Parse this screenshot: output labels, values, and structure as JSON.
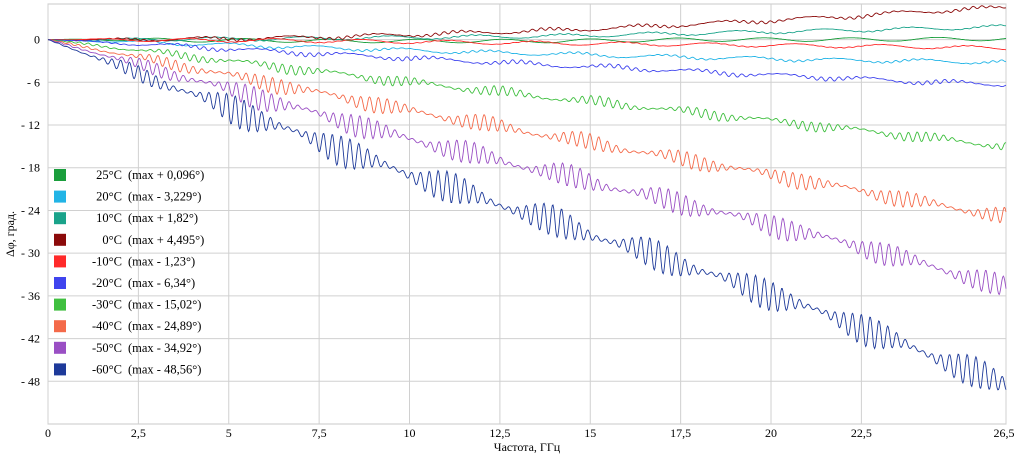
{
  "chart_data": {
    "type": "line",
    "title": "",
    "xlabel": "Частота, ГГц",
    "ylabel": "Δφ,  град.",
    "xlim": [
      0,
      26.5
    ],
    "ylim": [
      -54,
      5
    ],
    "x_ticks": [
      "0",
      "2,5",
      "5",
      "7,5",
      "10",
      "12,5",
      "15",
      "17,5",
      "20",
      "22,5",
      "26,5"
    ],
    "x_tick_values": [
      0,
      2.5,
      5,
      7.5,
      10,
      12.5,
      15,
      17.5,
      20,
      22.5,
      26.5
    ],
    "y_ticks": [
      "0",
      "- 6",
      "- 12",
      "- 18",
      "- 24",
      "- 30",
      "- 36",
      "- 42",
      "- 48"
    ],
    "y_tick_values": [
      0,
      -6,
      -12,
      -18,
      -24,
      -30,
      -36,
      -42,
      -48
    ],
    "grid": true,
    "legend_position": "left",
    "x": [
      0,
      2,
      4,
      6,
      8,
      10,
      12,
      14,
      16,
      18,
      20,
      22,
      24,
      26.5
    ],
    "series": [
      {
        "temp": "25°C",
        "note": "(max + 0,096°)",
        "color": "#1a9e3c",
        "values": [
          0,
          0,
          -0.1,
          -0.1,
          -0.2,
          -0.2,
          -0.2,
          -0.2,
          -0.1,
          0,
          0,
          0,
          0.05,
          0.1
        ]
      },
      {
        "temp": "20°C",
        "note": "(max - 3,229°)",
        "color": "#22b4e6",
        "values": [
          0,
          -0.3,
          -0.6,
          -0.9,
          -1.2,
          -1.5,
          -1.8,
          -2.0,
          -2.3,
          -2.5,
          -2.7,
          -2.9,
          -3.0,
          -3.2
        ]
      },
      {
        "temp": "10°C",
        "note": "(max + 1,82°)",
        "color": "#1aa38a",
        "values": [
          0,
          0,
          0.1,
          0.1,
          0.2,
          0.3,
          0.4,
          0.5,
          0.7,
          0.9,
          1.1,
          1.3,
          1.5,
          1.8
        ]
      },
      {
        "temp": "0°C",
        "note": "(max + 4,495°)",
        "color": "#8b0a0a",
        "values": [
          0,
          0,
          0.1,
          0.2,
          0.4,
          0.7,
          1.0,
          1.3,
          1.7,
          2.2,
          2.7,
          3.2,
          3.9,
          4.5
        ]
      },
      {
        "temp": "-10°C",
        "note": "(max - 1,23°)",
        "color": "#ff2a2a",
        "values": [
          0,
          0,
          -0.1,
          -0.1,
          -0.2,
          -0.3,
          -0.4,
          -0.5,
          -0.6,
          -0.7,
          -0.8,
          -0.9,
          -1.0,
          -1.2
        ]
      },
      {
        "temp": "-20°C",
        "note": "(max - 6,34°)",
        "color": "#3f44ee",
        "values": [
          0,
          -0.5,
          -1.0,
          -1.6,
          -2.1,
          -2.6,
          -3.1,
          -3.6,
          -4.0,
          -4.5,
          -5.0,
          -5.4,
          -5.9,
          -6.3
        ]
      },
      {
        "temp": "-30°C",
        "note": "(max - 15,02°)",
        "color": "#3fbf3f",
        "values": [
          0,
          -1.2,
          -2.4,
          -3.6,
          -4.8,
          -6.0,
          -7.1,
          -8.2,
          -9.2,
          -10.3,
          -11.4,
          -12.5,
          -13.6,
          -15.0
        ]
      },
      {
        "temp": "-40°C",
        "note": "(max - 24,89°)",
        "color": "#f46a4a",
        "values": [
          0,
          -2.0,
          -4.0,
          -6.0,
          -8.0,
          -10.0,
          -11.8,
          -13.6,
          -15.4,
          -17.2,
          -19.0,
          -20.8,
          -22.7,
          -24.9
        ]
      },
      {
        "temp": "-50°C",
        "note": "(max - 34,92°)",
        "color": "#9a4fc4",
        "values": [
          0,
          -2.8,
          -5.6,
          -8.4,
          -11.2,
          -14.0,
          -16.4,
          -18.8,
          -21.2,
          -23.6,
          -26.0,
          -28.5,
          -31.2,
          -34.9
        ]
      },
      {
        "temp": "-60°C",
        "note": "(max - 48,56°)",
        "color": "#1e3a9a",
        "values": [
          0,
          -3.8,
          -7.7,
          -11.5,
          -15.3,
          -19.0,
          -22.3,
          -25.7,
          -29.0,
          -32.4,
          -35.8,
          -39.5,
          -43.5,
          -48.6
        ]
      }
    ]
  }
}
